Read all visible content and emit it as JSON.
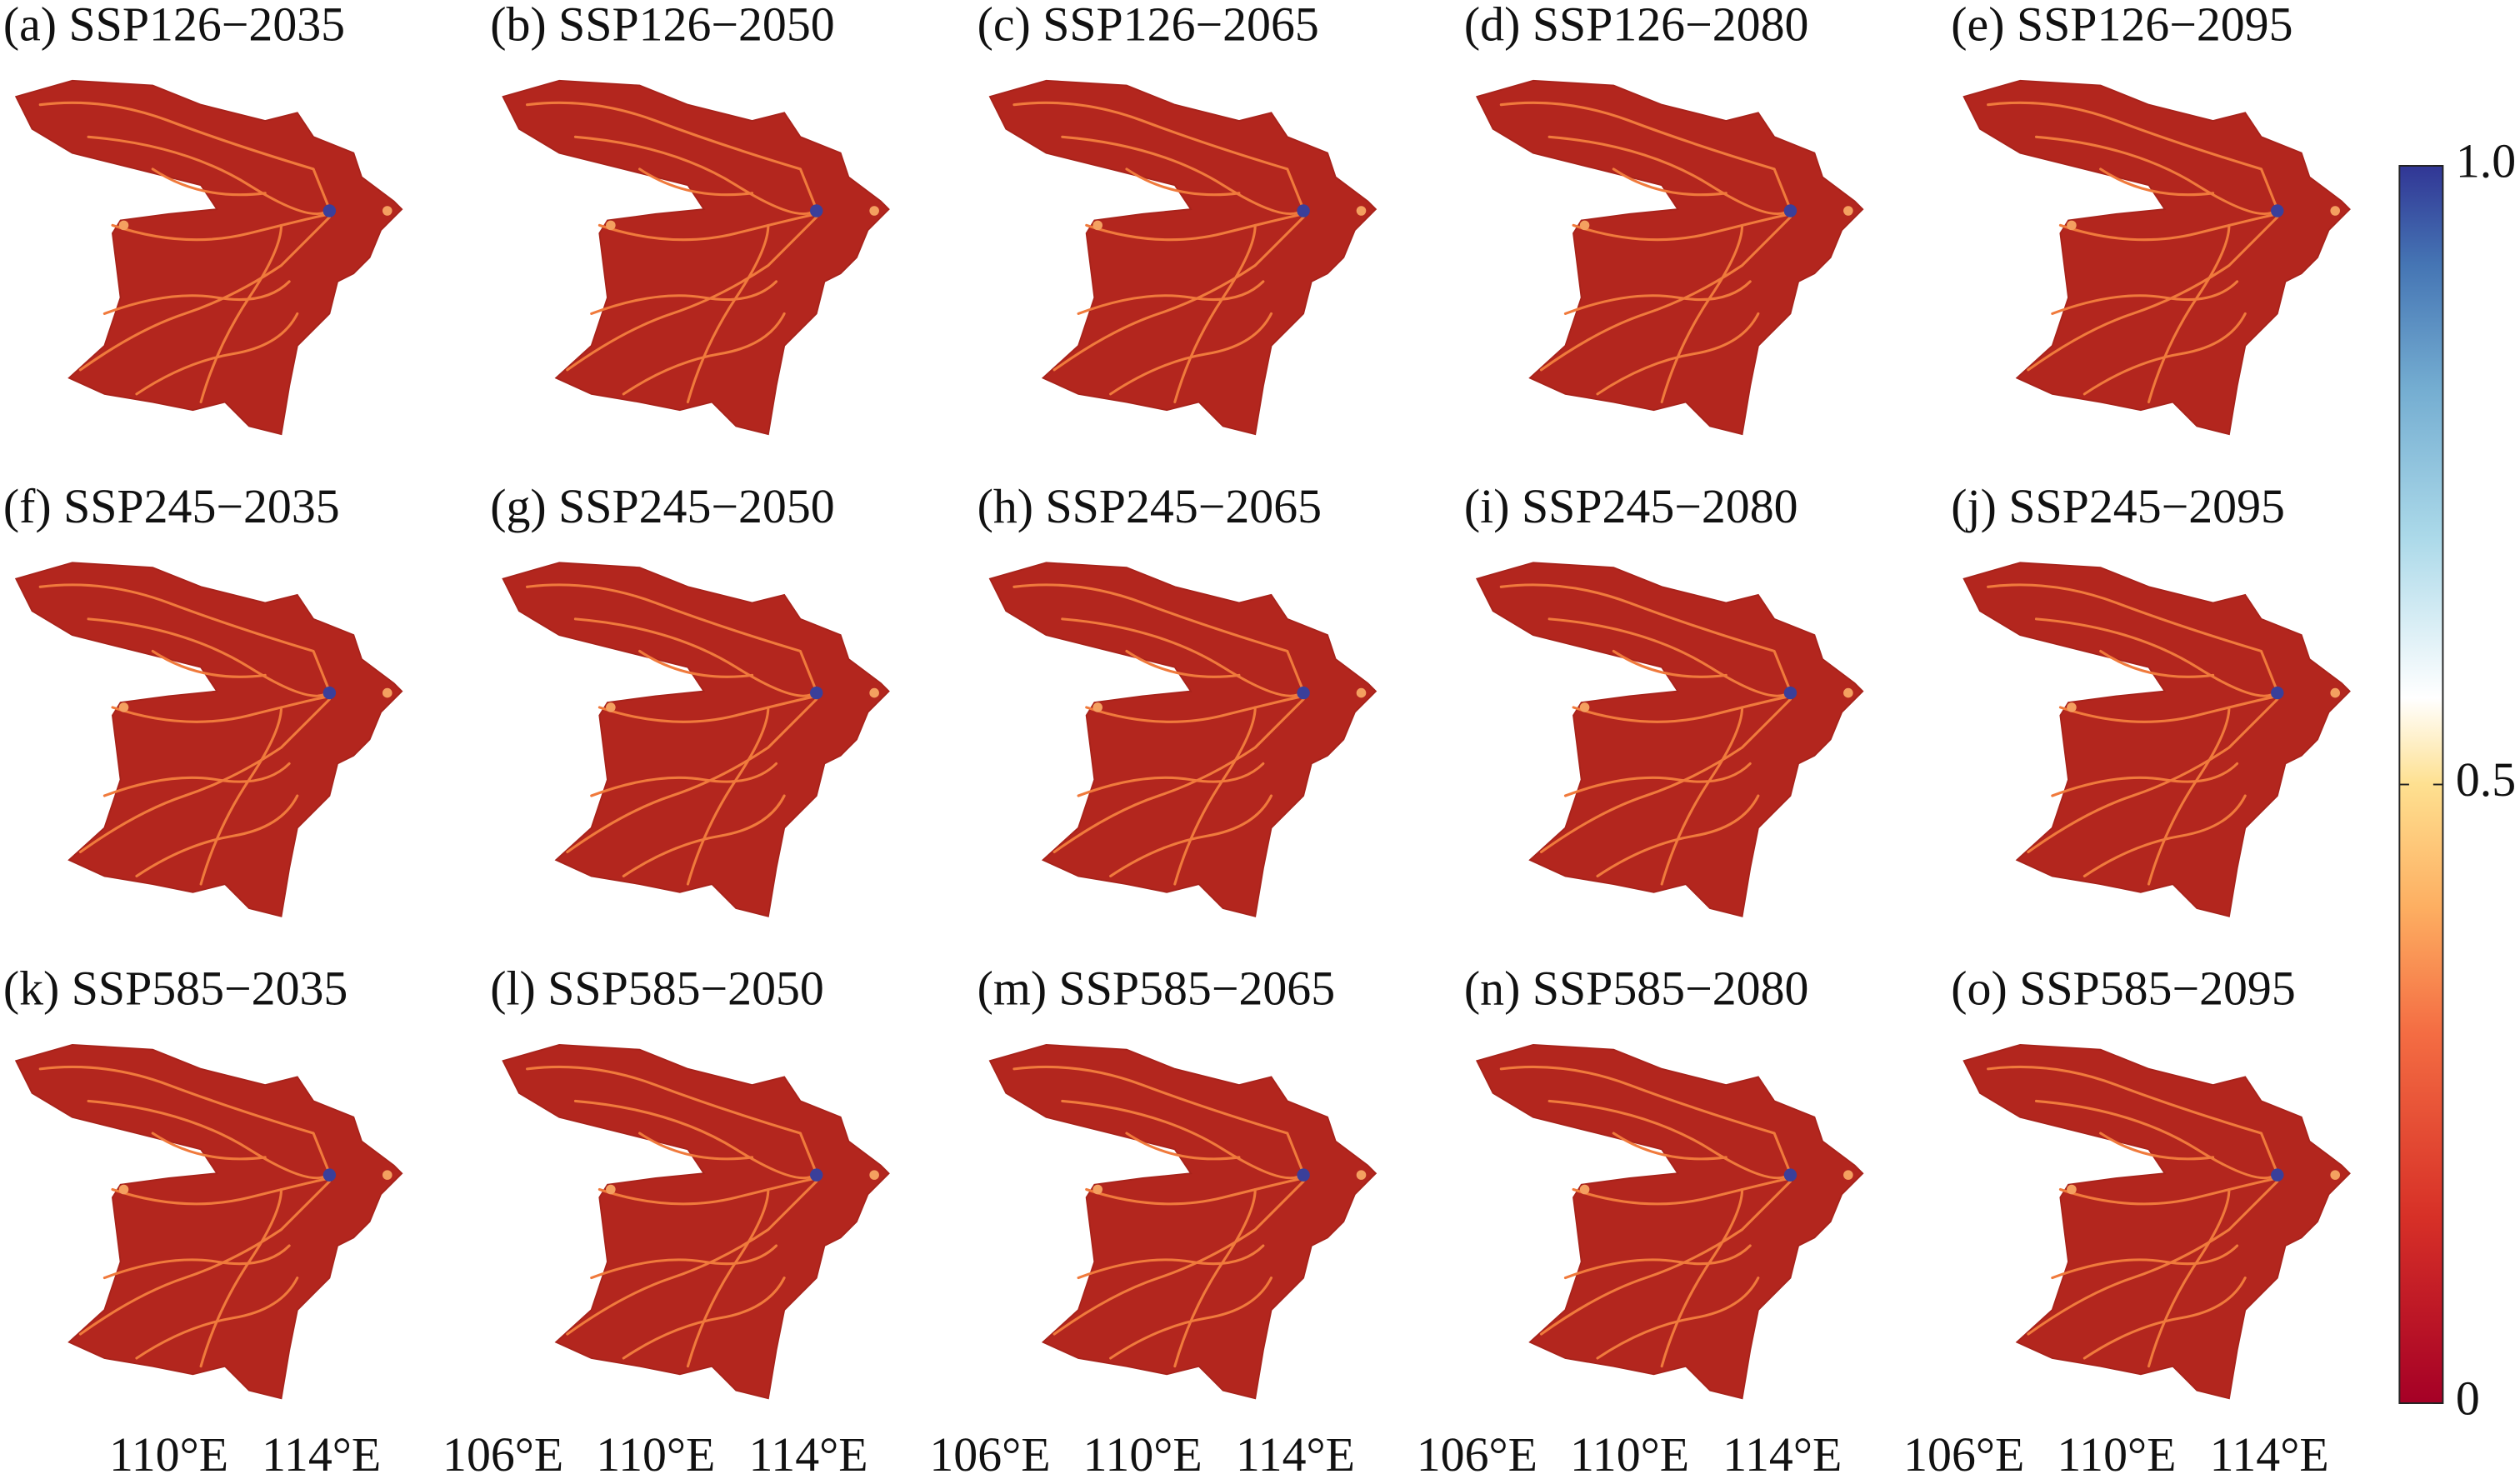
{
  "panels": [
    {
      "title": "(a) SSP126−2035"
    },
    {
      "title": "(b) SSP126−2050"
    },
    {
      "title": "(c) SSP126−2065"
    },
    {
      "title": "(d) SSP126−2080"
    },
    {
      "title": "(e) SSP126−2095"
    },
    {
      "title": "(f) SSP245−2035"
    },
    {
      "title": "(g) SSP245−2050"
    },
    {
      "title": "(h) SSP245−2065"
    },
    {
      "title": "(i) SSP245−2080"
    },
    {
      "title": "(j) SSP245−2095"
    },
    {
      "title": "(k) SSP585−2035"
    },
    {
      "title": "(l) SSP585−2050"
    },
    {
      "title": "(m) SSP585−2065"
    },
    {
      "title": "(n) SSP585−2080"
    },
    {
      "title": "(o) SSP585−2095"
    }
  ],
  "x_labels": [
    [
      "110°E",
      "114°E"
    ],
    [
      "106°E",
      "110°E",
      "114°E"
    ],
    [
      "106°E",
      "110°E",
      "114°E"
    ],
    [
      "106°E",
      "110°E",
      "114°E"
    ],
    [
      "106°E",
      "110°E",
      "114°E"
    ]
  ],
  "colorbar": {
    "lim": [
      0,
      1
    ],
    "ticks": [
      0,
      0.5,
      {
        "value": 1,
        "label": "1.0"
      }
    ]
  }
}
